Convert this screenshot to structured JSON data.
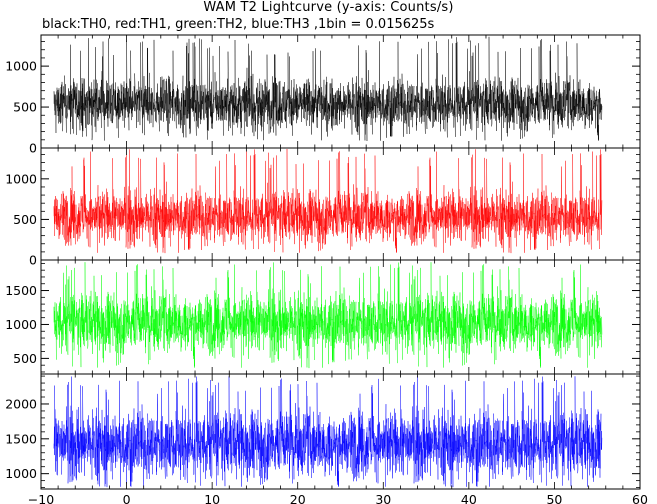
{
  "chart_data": {
    "type": "line",
    "title": "WAM T2 Lightcurve (y-axis: Counts/s)",
    "subtitle": "black:TH0, red:TH1, green:TH2, blue:TH3 ,1bin = 0.015625s",
    "x_ticks": [
      -10,
      0,
      10,
      20,
      30,
      40,
      50,
      60
    ],
    "xlim": [
      -10,
      60
    ],
    "data_x_range": [
      -8.5,
      55.5
    ],
    "grid": false,
    "panels": [
      {
        "name": "TH0",
        "color": "#000000",
        "ylim": [
          0,
          1380
        ],
        "y_ticks": [
          0,
          500,
          1000
        ],
        "mean": 540,
        "spread": 150,
        "min": 80,
        "max": 1360
      },
      {
        "name": "TH1",
        "color": "#ff0000",
        "ylim": [
          0,
          1380
        ],
        "y_ticks": [
          0,
          500,
          1000
        ],
        "mean": 540,
        "spread": 155,
        "min": 80,
        "max": 1370
      },
      {
        "name": "TH2",
        "color": "#00ff00",
        "ylim": [
          270,
          1950
        ],
        "y_ticks": [
          500,
          1000,
          1500
        ],
        "mean": 1030,
        "spread": 210,
        "min": 350,
        "max": 1920
      },
      {
        "name": "TH3",
        "color": "#0000ff",
        "ylim": [
          780,
          2430
        ],
        "y_ticks": [
          1000,
          1500,
          2000
        ],
        "mean": 1430,
        "spread": 230,
        "min": 800,
        "max": 2400
      }
    ]
  }
}
